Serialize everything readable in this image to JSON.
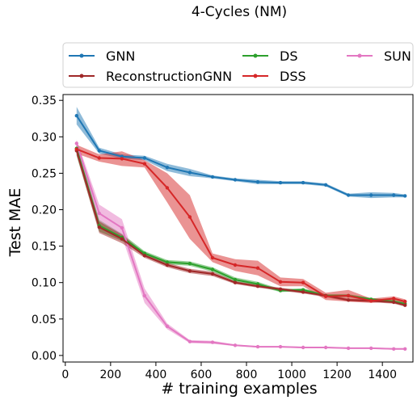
{
  "chart_data": {
    "type": "line",
    "title": "4-Cycles (NM)",
    "xlabel": "# training examples",
    "ylabel": "Test MAE",
    "xlim": [
      -10,
      1535
    ],
    "ylim": [
      -0.009,
      0.358
    ],
    "xticks": [
      0,
      200,
      400,
      600,
      800,
      1000,
      1200,
      1400
    ],
    "xtick_labels": [
      "0",
      "200",
      "400",
      "600",
      "800",
      "1000",
      "1200",
      "1400"
    ],
    "yticks": [
      0.0,
      0.05,
      0.1,
      0.15,
      0.2,
      0.25,
      0.3,
      0.35
    ],
    "ytick_labels": [
      "0.00",
      "0.05",
      "0.10",
      "0.15",
      "0.20",
      "0.25",
      "0.30",
      "0.35"
    ],
    "grid": false,
    "legend_position": "above plot, 3 columns",
    "x": [
      50,
      150,
      250,
      350,
      450,
      550,
      650,
      750,
      850,
      950,
      1050,
      1150,
      1250,
      1350,
      1450,
      1500
    ],
    "series": [
      {
        "name": "GNN",
        "color": "#1f77b4",
        "values": [
          0.329,
          0.281,
          0.273,
          0.271,
          0.258,
          0.251,
          0.245,
          0.241,
          0.238,
          0.237,
          0.237,
          0.234,
          0.22,
          0.22,
          0.22,
          0.219
        ],
        "band": [
          0.012,
          0.004,
          0.003,
          0.003,
          0.005,
          0.005,
          0.002,
          0.002,
          0.003,
          0.002,
          0.002,
          0.002,
          0.002,
          0.004,
          0.003,
          0.002
        ]
      },
      {
        "name": "DS",
        "color": "#2ca02c",
        "values": [
          0.284,
          0.178,
          0.162,
          0.14,
          0.128,
          0.126,
          0.118,
          0.104,
          0.098,
          0.089,
          0.09,
          0.082,
          0.082,
          0.077,
          0.074,
          0.071
        ],
        "band": [
          0.01,
          0.008,
          0.005,
          0.003,
          0.003,
          0.003,
          0.003,
          0.003,
          0.003,
          0.002,
          0.002,
          0.002,
          0.002,
          0.002,
          0.002,
          0.002
        ]
      },
      {
        "name": "SUN",
        "color": "#e377c2",
        "values": [
          0.291,
          0.195,
          0.175,
          0.082,
          0.04,
          0.019,
          0.018,
          0.014,
          0.012,
          0.012,
          0.011,
          0.011,
          0.01,
          0.01,
          0.009,
          0.009
        ],
        "band": [
          0.005,
          0.012,
          0.012,
          0.01,
          0.004,
          0.002,
          0.002,
          0.001,
          0.001,
          0.001,
          0.001,
          0.001,
          0.001,
          0.001,
          0.001,
          0.001
        ]
      },
      {
        "name": "ReconstructionGNN",
        "color": "#a02828",
        "values": [
          0.281,
          0.176,
          0.16,
          0.137,
          0.124,
          0.116,
          0.112,
          0.1,
          0.095,
          0.091,
          0.087,
          0.082,
          0.076,
          0.075,
          0.073,
          0.069
        ],
        "band": [
          0.006,
          0.008,
          0.006,
          0.003,
          0.003,
          0.003,
          0.003,
          0.002,
          0.002,
          0.002,
          0.002,
          0.002,
          0.002,
          0.002,
          0.002,
          0.002
        ]
      },
      {
        "name": "DSS",
        "color": "#d62728",
        "values": [
          0.283,
          0.271,
          0.27,
          0.263,
          0.23,
          0.19,
          0.134,
          0.124,
          0.12,
          0.101,
          0.1,
          0.081,
          0.082,
          0.075,
          0.078,
          0.074
        ],
        "band": [
          0.006,
          0.005,
          0.01,
          0.005,
          0.02,
          0.03,
          0.006,
          0.008,
          0.01,
          0.006,
          0.005,
          0.005,
          0.008,
          0.003,
          0.003,
          0.003
        ]
      }
    ],
    "legend": [
      {
        "name": "GNN",
        "color": "#1f77b4"
      },
      {
        "name": "ReconstructionGNN",
        "color": "#a02828"
      },
      {
        "name": "DS",
        "color": "#2ca02c"
      },
      {
        "name": "DSS",
        "color": "#d62728"
      },
      {
        "name": "SUN",
        "color": "#e377c2"
      }
    ]
  }
}
